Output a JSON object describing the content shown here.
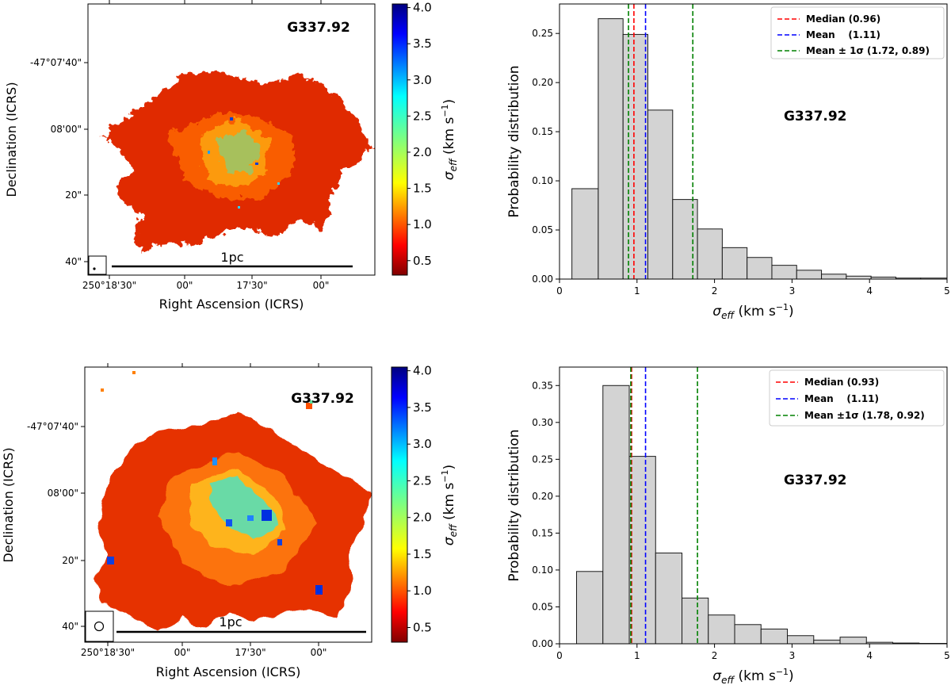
{
  "figure": {
    "panels": [
      {
        "kind": "map",
        "source_label": "G337.92",
        "xlabel": "Right Ascension (ICRS)",
        "ylabel": "Declination (ICRS)",
        "xticks": [
          "250°18'30\"",
          "00\"",
          "17'30\"",
          "00\""
        ],
        "yticks": [
          "-47°07'40\"",
          "08'00\"",
          "20\"",
          "40\""
        ],
        "scalebar_label": "1pc",
        "beam": "small",
        "colorbar": {
          "label_main": "σ",
          "label_sub": "eff",
          "label_unit": " (km s",
          "label_exp": "−1",
          "label_close": ")",
          "ticks": [
            "0.5",
            "1.0",
            "1.5",
            "2.0",
            "2.5",
            "3.0",
            "3.5",
            "4.0"
          ],
          "range": [
            0.3,
            4.05
          ]
        }
      },
      {
        "kind": "map",
        "source_label": "G337.92",
        "xlabel": "Right Ascension (ICRS)",
        "ylabel": "Declination (ICRS)",
        "xticks": [
          "250°18'30\"",
          "00\"",
          "17'30\"",
          "00\""
        ],
        "yticks": [
          "-47°07'40\"",
          "08'00\"",
          "20\"",
          "40\""
        ],
        "scalebar_label": "1pc",
        "beam": "large",
        "colorbar": {
          "label_main": "σ",
          "label_sub": "eff",
          "label_unit": " (km s",
          "label_exp": "−1",
          "label_close": ")",
          "ticks": [
            "0.5",
            "1.0",
            "1.5",
            "2.0",
            "2.5",
            "3.0",
            "3.5",
            "4.0"
          ],
          "range": [
            0.3,
            4.05
          ]
        }
      }
    ]
  },
  "chart_data": [
    {
      "type": "bar",
      "title": "G337.92",
      "xlabel_main": "σ",
      "xlabel_sub": "eff",
      "xlabel_unit": " (km s",
      "xlabel_exp": "−1",
      "xlabel_close": ")",
      "ylabel": "Probability distribution",
      "xlim": [
        0,
        5
      ],
      "ylim": [
        0,
        0.28
      ],
      "xticks": [
        "0",
        "1",
        "2",
        "3",
        "4",
        "5"
      ],
      "yticks": [
        "0.00",
        "0.05",
        "0.10",
        "0.15",
        "0.20",
        "0.25"
      ],
      "bin_edges": [
        0.16,
        0.5,
        0.82,
        1.14,
        1.46,
        1.78,
        2.1,
        2.42,
        2.74,
        3.06,
        3.38,
        3.7,
        4.02,
        4.34,
        4.66,
        5.0
      ],
      "values": [
        0.092,
        0.265,
        0.249,
        0.172,
        0.081,
        0.051,
        0.032,
        0.022,
        0.014,
        0.009,
        0.005,
        0.003,
        0.002,
        0.001,
        0.001
      ],
      "lines": [
        {
          "name": "Median",
          "x": 0.96,
          "color": "#ff0000"
        },
        {
          "name": "Mean",
          "x": 1.11,
          "color": "#0000ff"
        },
        {
          "name": "Mean-1σ",
          "x": 0.89,
          "color": "#008000"
        },
        {
          "name": "Mean+1σ",
          "x": 1.72,
          "color": "#008000"
        }
      ],
      "legend": [
        {
          "text": "Median (0.96)",
          "color": "#ff0000"
        },
        {
          "text": "Mean    (1.11)",
          "color": "#0000ff"
        },
        {
          "text": "Mean ± 1σ (1.72, 0.89)",
          "color": "#008000"
        }
      ],
      "legend_position": "top-right"
    },
    {
      "type": "bar",
      "title": "G337.92",
      "xlabel_main": "σ",
      "xlabel_sub": "eff",
      "xlabel_unit": " (km s",
      "xlabel_exp": "−1",
      "xlabel_close": ")",
      "ylabel": "Probability distribution",
      "xlim": [
        0,
        5
      ],
      "ylim": [
        0,
        0.375
      ],
      "xticks": [
        "0",
        "1",
        "2",
        "3",
        "4",
        "5"
      ],
      "yticks": [
        "0.00",
        "0.05",
        "0.10",
        "0.15",
        "0.20",
        "0.25",
        "0.30",
        "0.35"
      ],
      "bin_edges": [
        0.22,
        0.56,
        0.9,
        1.24,
        1.58,
        1.92,
        2.26,
        2.6,
        2.94,
        3.28,
        3.62,
        3.96,
        4.3,
        4.64,
        5.0
      ],
      "values": [
        0.098,
        0.35,
        0.254,
        0.123,
        0.062,
        0.039,
        0.026,
        0.02,
        0.011,
        0.005,
        0.009,
        0.002,
        0.001,
        0.0005
      ],
      "lines": [
        {
          "name": "Median",
          "x": 0.93,
          "color": "#ff0000"
        },
        {
          "name": "Mean",
          "x": 1.11,
          "color": "#0000ff"
        },
        {
          "name": "Mean-1σ",
          "x": 0.92,
          "color": "#008000"
        },
        {
          "name": "Mean+1σ",
          "x": 1.78,
          "color": "#008000"
        }
      ],
      "legend": [
        {
          "text": "Median (0.93)",
          "color": "#ff0000"
        },
        {
          "text": "Mean    (1.11)",
          "color": "#0000ff"
        },
        {
          "text": "Mean ±1σ (1.78, 0.92)",
          "color": "#008000"
        }
      ],
      "legend_position": "top-right"
    }
  ]
}
